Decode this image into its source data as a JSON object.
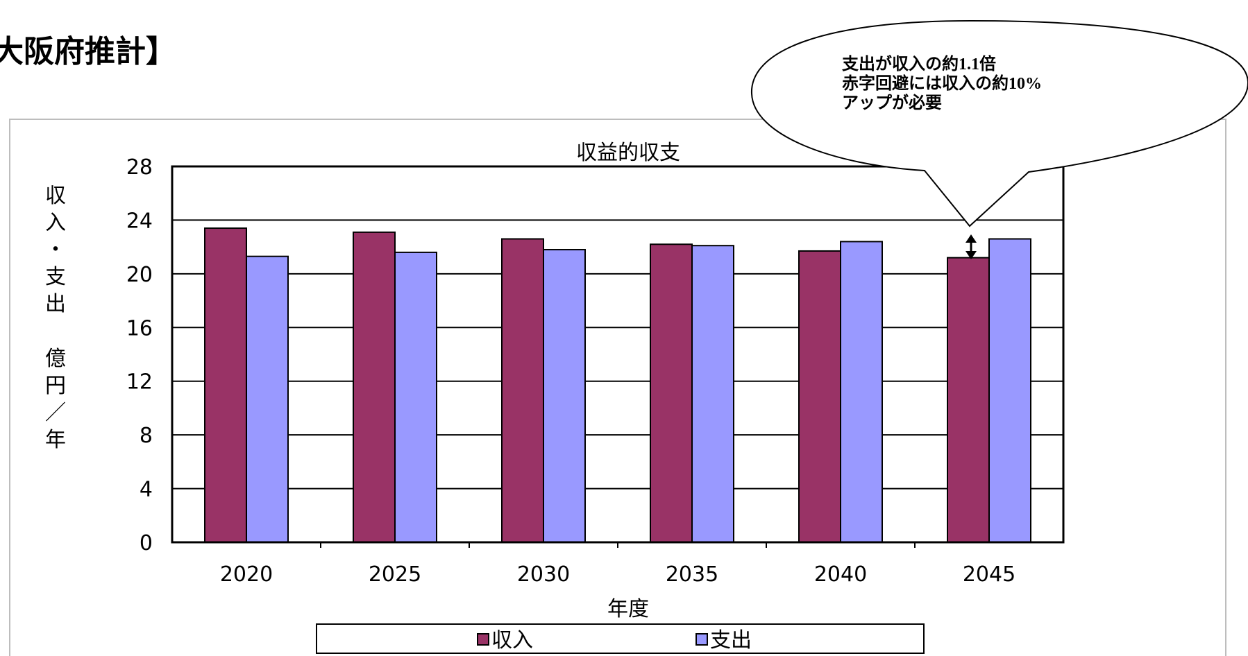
{
  "header": {
    "title": "大阪府推計】"
  },
  "callout": {
    "lines": [
      "支出が収入の約1.1倍",
      "赤字回避には収入の約10%",
      "アップが必要"
    ]
  },
  "chart_data": {
    "type": "bar",
    "title": "収益的収支",
    "xlabel": "年度",
    "ylabel": "収入・支出 億円／年",
    "categories": [
      "2020",
      "2025",
      "2030",
      "2035",
      "2040",
      "2045"
    ],
    "series": [
      {
        "name": "収入",
        "color": "#993366",
        "values": [
          23.4,
          23.1,
          22.6,
          22.2,
          21.7,
          21.2
        ]
      },
      {
        "name": "支出",
        "color": "#9999ff",
        "values": [
          21.3,
          21.6,
          21.8,
          22.1,
          22.4,
          22.6
        ]
      }
    ],
    "ylim": [
      0,
      28
    ],
    "yticks": [
      0,
      4,
      8,
      12,
      16,
      20,
      24,
      28
    ],
    "grid": true,
    "legend": "bottom"
  }
}
